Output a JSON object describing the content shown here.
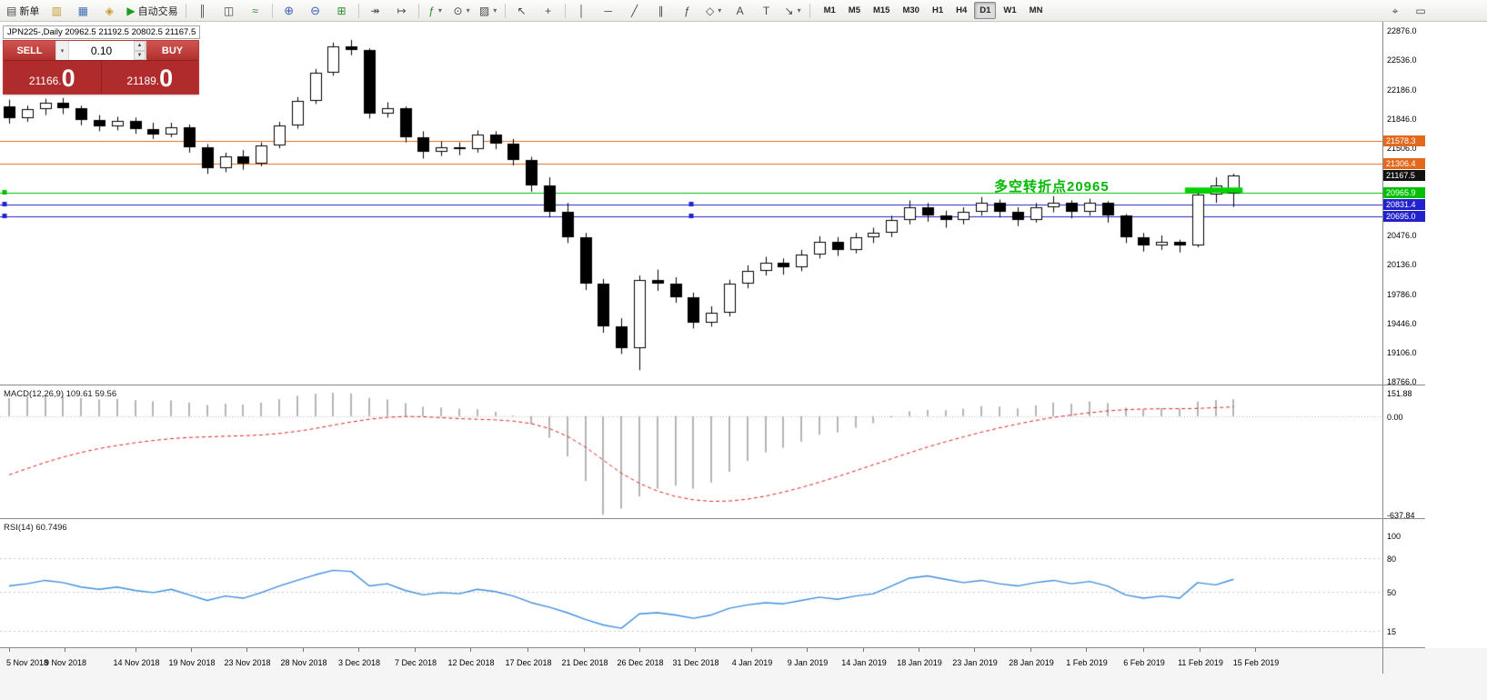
{
  "icons": {
    "chevron-down": "▾",
    "spinner-up": "▲",
    "spinner-down": "▼",
    "new-order": "▤",
    "market-watch": "▥",
    "data-window": "▦",
    "navigator": "◈",
    "autotrading-play": "▶",
    "chart-bars": "║",
    "chart-candles": "◫",
    "chart-line": "≈",
    "zoom-in": "⊕",
    "zoom-out": "⊖",
    "tile": "⊞",
    "auto-scroll": "↠",
    "chart-shift": "↦",
    "indicators": "ƒ",
    "periods": "⊙",
    "templates": "▨",
    "cursor": "↖",
    "crosshair": "+",
    "vline": "│",
    "hline": "─",
    "trendline": "╱",
    "channel": "∥",
    "f-fibonacci": "ƒ",
    "shapes": "◇",
    "text": "A",
    "text-label": "T",
    "arrows": "↘",
    "mouse": "⌖",
    "monitor": "▭"
  },
  "toolbar": {
    "items": [
      {
        "name": "new-order",
        "icon": "new-order",
        "label": "新单"
      },
      {
        "name": "market-watch",
        "icon": "market-watch",
        "cls": "gold"
      },
      {
        "name": "data-window",
        "icon": "data-window",
        "cls": "blue"
      },
      {
        "name": "navigator",
        "icon": "navigator",
        "cls": "gold"
      },
      {
        "name": "autotrading",
        "icon": "autotrading-play",
        "cls": "play",
        "label": "自动交易"
      },
      {
        "sep": true
      },
      {
        "name": "chart-bars",
        "icon": "chart-bars"
      },
      {
        "name": "chart-candles",
        "icon": "chart-candles"
      },
      {
        "name": "chart-line",
        "icon": "chart-line",
        "cls": "green"
      },
      {
        "sep": true
      },
      {
        "name": "zoom-in",
        "icon": "zoom-in",
        "cls": "zoom"
      },
      {
        "name": "zoom-out",
        "icon": "zoom-out",
        "cls": "zoom"
      },
      {
        "name": "tile-windows",
        "icon": "tile",
        "cls": "green"
      },
      {
        "sep": true
      },
      {
        "name": "auto-scroll",
        "icon": "auto-scroll"
      },
      {
        "name": "chart-shift",
        "icon": "chart-shift"
      },
      {
        "sep": true
      },
      {
        "name": "indicators",
        "icon": "indicators",
        "cls": "green",
        "dd": true
      },
      {
        "name": "periods",
        "icon": "periods",
        "dd": true
      },
      {
        "name": "templates",
        "icon": "templates",
        "dd": true
      },
      {
        "sep": true
      },
      {
        "name": "cursor",
        "icon": "cursor"
      },
      {
        "name": "crosshair",
        "icon": "crosshair"
      },
      {
        "sep": true
      },
      {
        "name": "vertical-line",
        "icon": "vline"
      },
      {
        "name": "horizontal-line",
        "icon": "hline"
      },
      {
        "name": "trendline",
        "icon": "trendline"
      },
      {
        "name": "equidistant-channel",
        "icon": "channel"
      },
      {
        "name": "fibonacci",
        "icon": "f-fibonacci"
      },
      {
        "name": "shapes",
        "icon": "shapes",
        "dd": true
      },
      {
        "name": "text",
        "icon": "text"
      },
      {
        "name": "text-label",
        "icon": "text-label"
      },
      {
        "name": "arrows",
        "icon": "arrows",
        "dd": true
      },
      {
        "sep": true
      }
    ],
    "timeframes": [
      "M1",
      "M5",
      "M15",
      "M30",
      "H1",
      "H4",
      "D1",
      "W1",
      "MN"
    ],
    "active_timeframe": "D1",
    "right_items": [
      {
        "name": "one-click-mode",
        "icon": "mouse"
      },
      {
        "name": "market-depth",
        "icon": "monitor"
      }
    ]
  },
  "chart": {
    "symbol_label": "JPN225-,Daily  20962.5 21192.5 20802.5 21167.5",
    "annotation": "多空转折点20965"
  },
  "trade": {
    "sell_label": "SELL",
    "buy_label": "BUY",
    "volume": "0.10",
    "sell_price": "21166.0",
    "buy_price": "21189.0"
  },
  "macd_panel": {
    "label": "MACD(12,26,9) 109.61 59.56"
  },
  "rsi_panel": {
    "label": "RSI(14) 60.7496"
  },
  "chart_data": {
    "type": "candlestick",
    "symbol": "JPN225-",
    "period": "Daily",
    "ohlc_display": {
      "open": 20962.5,
      "high": 21192.5,
      "low": 20802.5,
      "close": 21167.5
    },
    "y_axis": {
      "ticks": [
        22876.0,
        22536.0,
        22186.0,
        21846.0,
        21506.0,
        20476.0,
        20136.0,
        19786.0,
        19446.0,
        19106.0,
        18766.0
      ],
      "range": [
        18723,
        22972
      ]
    },
    "x_axis": {
      "labels": [
        [
          "5 Nov 2018",
          0
        ],
        [
          "9 Nov 2018",
          3.1
        ],
        [
          "14 Nov 2018",
          7.0
        ],
        [
          "19 Nov 2018",
          10.1
        ],
        [
          "23 Nov 2018",
          13.2
        ],
        [
          "28 Nov 2018",
          16.3
        ],
        [
          "3 Dec 2018",
          19.4
        ],
        [
          "7 Dec 2018",
          22.5
        ],
        [
          "12 Dec 2018",
          25.6
        ],
        [
          "17 Dec 2018",
          28.8
        ],
        [
          "21 Dec 2018",
          31.9
        ],
        [
          "26 Dec 2018",
          35.0
        ],
        [
          "31 Dec 2018",
          38.1
        ],
        [
          "4 Jan 2019",
          41.2
        ],
        [
          "9 Jan 2019",
          44.3
        ],
        [
          "14 Jan 2019",
          47.4
        ],
        [
          "18 Jan 2019",
          50.5
        ],
        [
          "23 Jan 2019",
          53.6
        ],
        [
          "28 Jan 2019",
          56.7
        ],
        [
          "1 Feb 2019",
          59.8
        ],
        [
          "6 Feb 2019",
          63.0
        ],
        [
          "11 Feb 2019",
          66.1
        ],
        [
          "15 Feb 2019",
          69.2
        ]
      ]
    },
    "levels": [
      {
        "price": 21578.3,
        "label": "21578.3",
        "color": "#e2691d",
        "text_color": "#ffffff",
        "line": "solid"
      },
      {
        "price": 21306.4,
        "label": "21306.4",
        "color": "#e2691d",
        "text_color": "#ffffff",
        "line": "solid"
      },
      {
        "price": 21167.5,
        "label": "21167.5",
        "color": "#111111",
        "text_color": "#ffffff",
        "line": "none"
      },
      {
        "price": 20965.9,
        "label": "20965.9",
        "color": "#00bf00",
        "text_color": "#ffffff",
        "line": "solid",
        "handles": [
          "left"
        ]
      },
      {
        "price": 20831.4,
        "label": "20831.4",
        "color": "#2222cc",
        "text_color": "#ffffff",
        "line": "solid",
        "handles": [
          "left",
          "center"
        ]
      },
      {
        "price": 20695.0,
        "label": "20695.0",
        "color": "#2222cc",
        "text_color": "#ffffff",
        "line": "solid",
        "handles": [
          "left",
          "center"
        ]
      }
    ],
    "highlight_segment": {
      "price": 21000,
      "from_slot": 65.3,
      "to_slot": 68.5,
      "color": "#00d200",
      "width": 6
    },
    "candles": [
      [
        21980,
        22060,
        21780,
        21840
      ],
      [
        21840,
        21990,
        21800,
        21950
      ],
      [
        21950,
        22070,
        21880,
        22020
      ],
      [
        22020,
        22080,
        21890,
        21960
      ],
      [
        21960,
        21990,
        21760,
        21820
      ],
      [
        21820,
        21880,
        21690,
        21750
      ],
      [
        21750,
        21860,
        21700,
        21810
      ],
      [
        21810,
        21850,
        21660,
        21720
      ],
      [
        21720,
        21790,
        21600,
        21650
      ],
      [
        21650,
        21790,
        21620,
        21740
      ],
      [
        21740,
        21770,
        21440,
        21500
      ],
      [
        21500,
        21540,
        21190,
        21260
      ],
      [
        21260,
        21440,
        21210,
        21400
      ],
      [
        21400,
        21470,
        21240,
        21310
      ],
      [
        21310,
        21560,
        21280,
        21520
      ],
      [
        21520,
        21800,
        21490,
        21760
      ],
      [
        21760,
        22090,
        21720,
        22050
      ],
      [
        22050,
        22420,
        22010,
        22380
      ],
      [
        22380,
        22730,
        22340,
        22680
      ],
      [
        22680,
        22760,
        22580,
        22640
      ],
      [
        22640,
        22660,
        21840,
        21900
      ],
      [
        21900,
        22030,
        21850,
        21960
      ],
      [
        21960,
        21980,
        21560,
        21620
      ],
      [
        21620,
        21690,
        21370,
        21450
      ],
      [
        21450,
        21570,
        21400,
        21500
      ],
      [
        21500,
        21560,
        21410,
        21480
      ],
      [
        21480,
        21700,
        21440,
        21650
      ],
      [
        21650,
        21690,
        21480,
        21550
      ],
      [
        21550,
        21600,
        21290,
        21350
      ],
      [
        21350,
        21390,
        20980,
        21050
      ],
      [
        21050,
        21150,
        20680,
        20750
      ],
      [
        20750,
        20850,
        20380,
        20450
      ],
      [
        20450,
        20500,
        19830,
        19900
      ],
      [
        19900,
        19960,
        19330,
        19400
      ],
      [
        19400,
        19500,
        19080,
        19150
      ],
      [
        19150,
        20000,
        18890,
        19950
      ],
      [
        19950,
        20070,
        19820,
        19900
      ],
      [
        19900,
        19980,
        19680,
        19750
      ],
      [
        19750,
        19800,
        19380,
        19450
      ],
      [
        19450,
        19640,
        19400,
        19560
      ],
      [
        19560,
        19950,
        19520,
        19900
      ],
      [
        19900,
        20120,
        19850,
        20050
      ],
      [
        20050,
        20220,
        20000,
        20150
      ],
      [
        20150,
        20200,
        20010,
        20100
      ],
      [
        20100,
        20300,
        20050,
        20250
      ],
      [
        20250,
        20460,
        20200,
        20400
      ],
      [
        20400,
        20450,
        20230,
        20300
      ],
      [
        20300,
        20500,
        20260,
        20450
      ],
      [
        20450,
        20560,
        20380,
        20500
      ],
      [
        20500,
        20700,
        20450,
        20650
      ],
      [
        20650,
        20880,
        20600,
        20800
      ],
      [
        20800,
        20850,
        20630,
        20700
      ],
      [
        20700,
        20760,
        20560,
        20650
      ],
      [
        20650,
        20800,
        20600,
        20750
      ],
      [
        20750,
        20920,
        20700,
        20850
      ],
      [
        20850,
        20890,
        20680,
        20750
      ],
      [
        20750,
        20800,
        20580,
        20650
      ],
      [
        20650,
        20850,
        20620,
        20800
      ],
      [
        20800,
        20930,
        20740,
        20850
      ],
      [
        20850,
        20880,
        20670,
        20750
      ],
      [
        20750,
        20900,
        20700,
        20850
      ],
      [
        20850,
        20870,
        20620,
        20700
      ],
      [
        20700,
        20720,
        20380,
        20450
      ],
      [
        20450,
        20500,
        20280,
        20350
      ],
      [
        20350,
        20470,
        20300,
        20400
      ],
      [
        20400,
        20420,
        20270,
        20350
      ],
      [
        20350,
        21000,
        20330,
        20950
      ],
      [
        20950,
        21150,
        20850,
        21050
      ],
      [
        20962,
        21192,
        20802,
        21167
      ]
    ],
    "indicators": {
      "macd": {
        "label": "MACD(12,26,9) 109.61 59.56",
        "ticks": [
          151.88,
          0.0,
          -637.84
        ],
        "range": [
          -661,
          199
        ],
        "histogram": [
          118,
          125,
          132,
          128,
          118,
          108,
          112,
          104,
          96,
          102,
          88,
          72,
          80,
          74,
          88,
          110,
          132,
          145,
          152,
          148,
          118,
          108,
          84,
          62,
          56,
          48,
          44,
          28,
          4,
          -52,
          -140,
          -260,
          -420,
          -638,
          -600,
          -520,
          -470,
          -450,
          -470,
          -430,
          -360,
          -290,
          -235,
          -205,
          -165,
          -120,
          -105,
          -75,
          -45,
          -8,
          32,
          40,
          38,
          48,
          66,
          62,
          50,
          70,
          88,
          80,
          95,
          85,
          55,
          45,
          52,
          48,
          95,
          105,
          110
        ],
        "signal": [
          -380,
          -340,
          -300,
          -265,
          -235,
          -210,
          -190,
          -172,
          -158,
          -146,
          -138,
          -134,
          -130,
          -127,
          -122,
          -112,
          -98,
          -80,
          -58,
          -38,
          -20,
          -8,
          -2,
          -4,
          -10,
          -16,
          -20,
          -24,
          -32,
          -48,
          -80,
          -130,
          -200,
          -285,
          -370,
          -435,
          -485,
          -520,
          -542,
          -552,
          -550,
          -538,
          -518,
          -492,
          -462,
          -428,
          -392,
          -354,
          -315,
          -276,
          -237,
          -200,
          -166,
          -134,
          -104,
          -76,
          -51,
          -28,
          -8,
          8,
          22,
          34,
          42,
          46,
          48,
          48,
          50,
          55,
          60
        ]
      },
      "rsi": {
        "label": "RSI(14) 60.7496",
        "ticks": [
          100,
          80,
          50,
          15
        ],
        "levels": [
          80,
          50,
          15
        ],
        "range": [
          0,
          115
        ],
        "values": [
          55,
          57,
          60,
          58,
          54,
          52,
          54,
          51,
          49,
          52,
          47,
          42,
          46,
          44,
          49,
          55,
          60,
          65,
          69,
          68,
          55,
          57,
          51,
          47,
          49,
          48,
          52,
          50,
          46,
          40,
          36,
          31,
          25,
          20,
          17,
          30,
          31,
          29,
          26,
          29,
          35,
          38,
          40,
          39,
          42,
          45,
          43,
          46,
          48,
          55,
          62,
          64,
          61,
          58,
          60,
          57,
          55,
          58,
          60,
          57,
          59,
          55,
          47,
          44,
          46,
          44,
          58,
          56,
          61
        ]
      }
    }
  }
}
